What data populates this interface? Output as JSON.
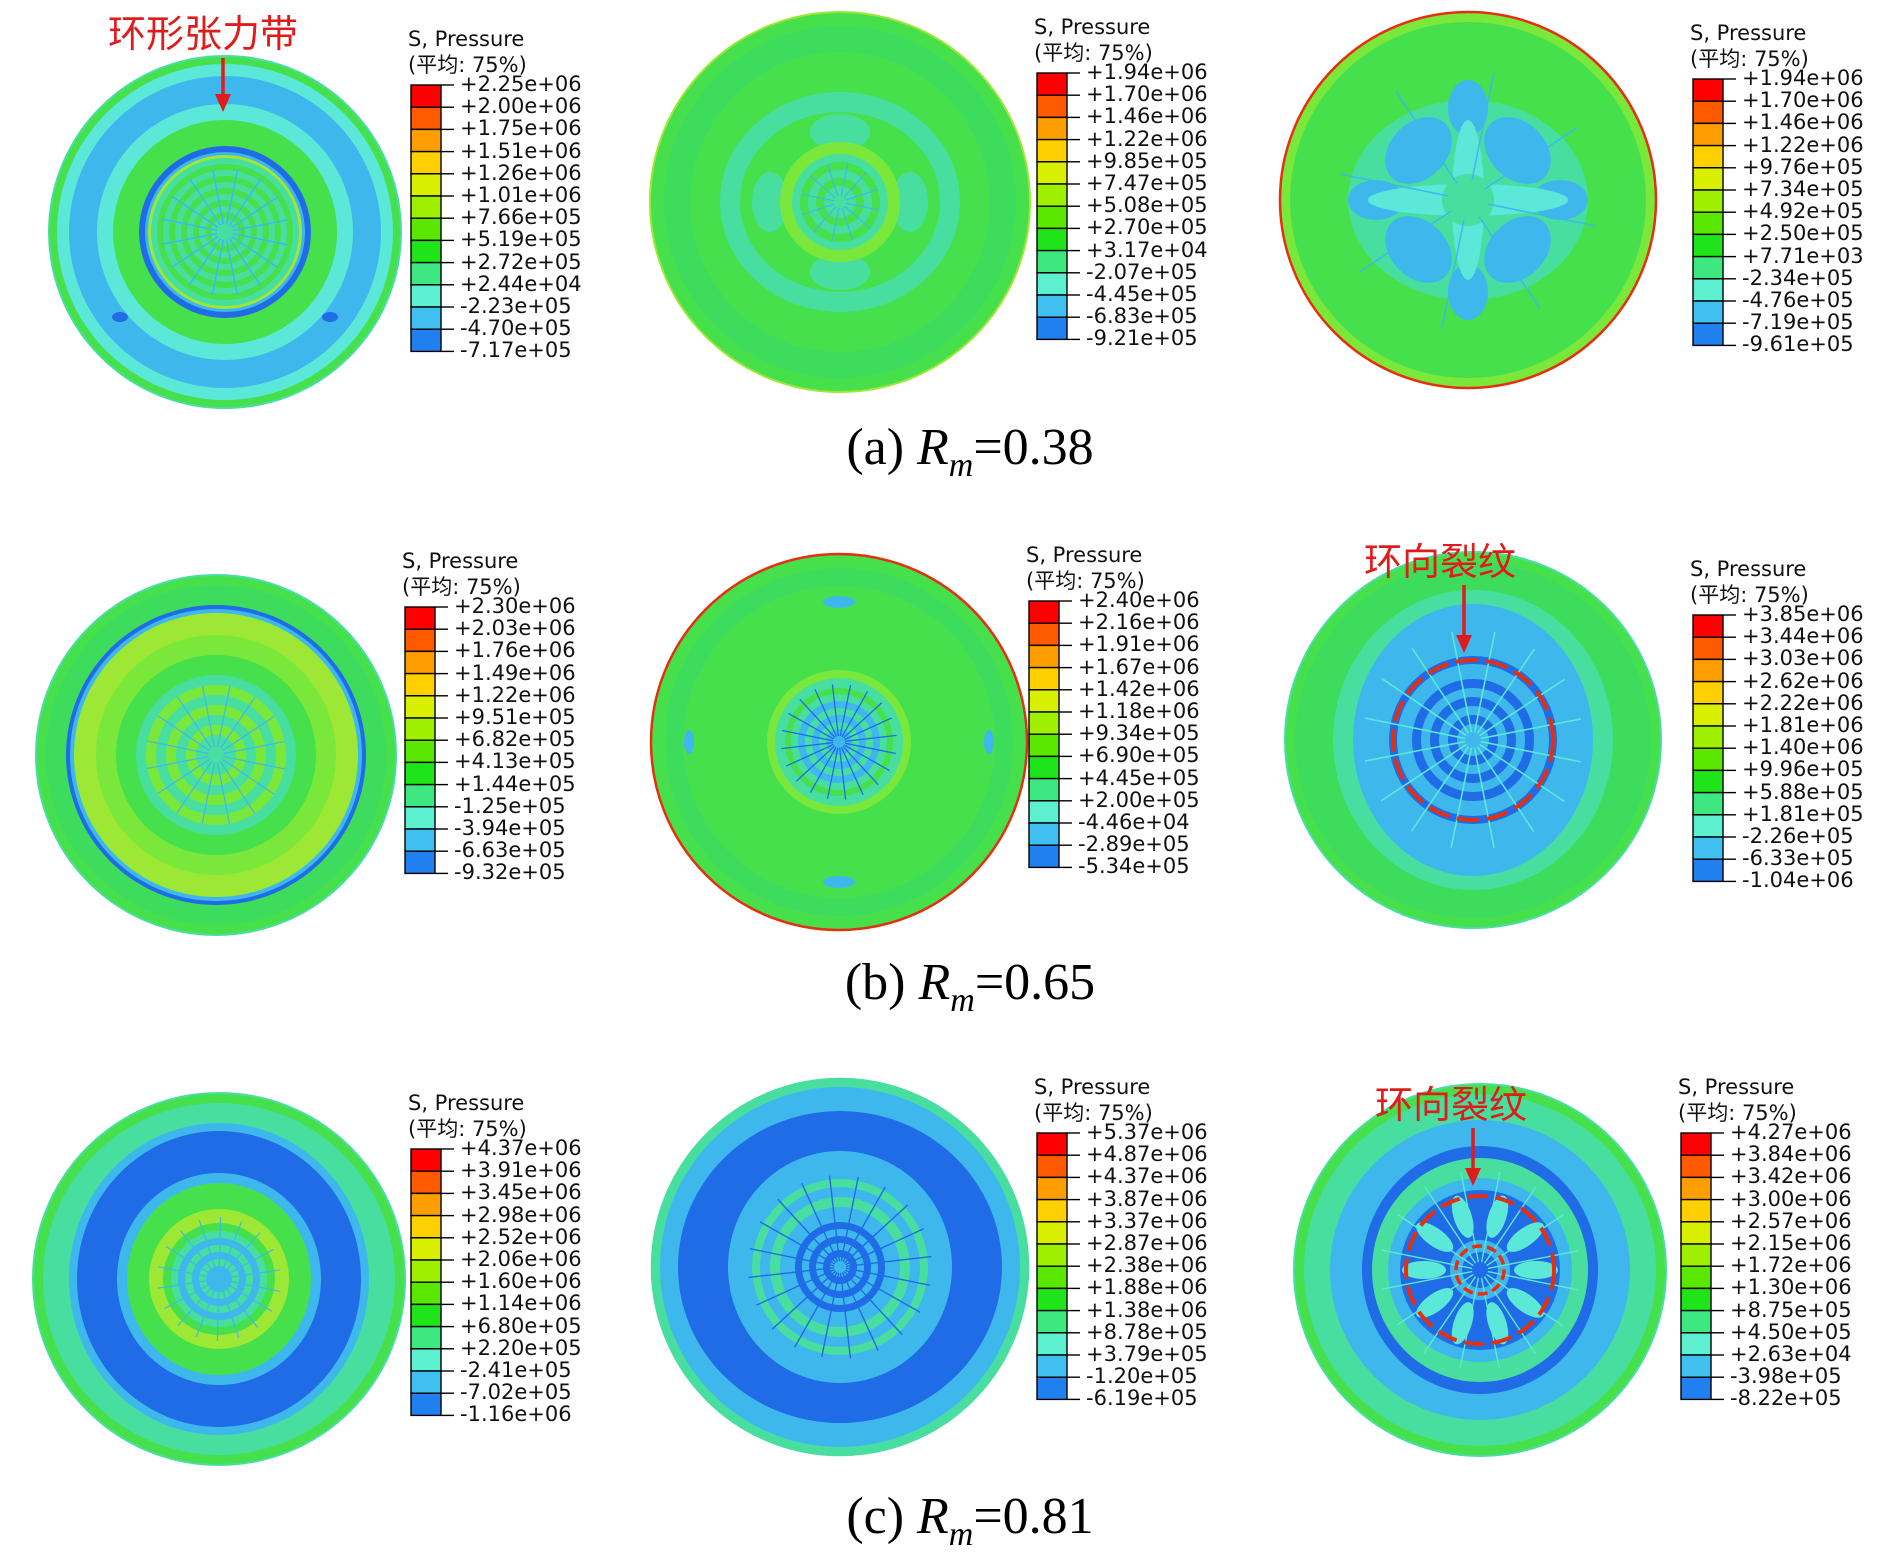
{
  "colors": {
    "annotation": "#e01b1b",
    "scale": [
      "#ff0000",
      "#ff5a00",
      "#ff9e00",
      "#ffd000",
      "#d8f000",
      "#9ef000",
      "#5ae800",
      "#20e41a",
      "#3ee880",
      "#5cf0d0",
      "#40c0f0",
      "#2080f0",
      "#1040f0"
    ]
  },
  "panels": [
    {
      "legend_title": "S, Pressure",
      "legend_subtitle": "(平均: 75%)",
      "values": [
        "+2.25e+06",
        "+2.00e+06",
        "+1.75e+06",
        "+1.51e+06",
        "+1.26e+06",
        "+1.01e+06",
        "+7.66e+05",
        "+5.19e+05",
        "+2.72e+05",
        "+2.44e+04",
        "-2.23e+05",
        "-4.70e+05",
        "-7.17e+05"
      ]
    },
    {
      "legend_title": "S, Pressure",
      "legend_subtitle": "(平均: 75%)",
      "values": [
        "+1.94e+06",
        "+1.70e+06",
        "+1.46e+06",
        "+1.22e+06",
        "+9.85e+05",
        "+7.47e+05",
        "+5.08e+05",
        "+2.70e+05",
        "+3.17e+04",
        "-2.07e+05",
        "-4.45e+05",
        "-6.83e+05",
        "-9.21e+05"
      ]
    },
    {
      "legend_title": "S, Pressure",
      "legend_subtitle": "(平均: 75%)",
      "values": [
        "+1.94e+06",
        "+1.70e+06",
        "+1.46e+06",
        "+1.22e+06",
        "+9.76e+05",
        "+7.34e+05",
        "+4.92e+05",
        "+2.50e+05",
        "+7.71e+03",
        "-2.34e+05",
        "-4.76e+05",
        "-7.19e+05",
        "-9.61e+05"
      ]
    },
    {
      "legend_title": "S, Pressure",
      "legend_subtitle": "(平均: 75%)",
      "values": [
        "+2.30e+06",
        "+2.03e+06",
        "+1.76e+06",
        "+1.49e+06",
        "+1.22e+06",
        "+9.51e+05",
        "+6.82e+05",
        "+4.13e+05",
        "+1.44e+05",
        "-1.25e+05",
        "-3.94e+05",
        "-6.63e+05",
        "-9.32e+05"
      ]
    },
    {
      "legend_title": "S, Pressure",
      "legend_subtitle": "(平均: 75%)",
      "values": [
        "+2.40e+06",
        "+2.16e+06",
        "+1.91e+06",
        "+1.67e+06",
        "+1.42e+06",
        "+1.18e+06",
        "+9.34e+05",
        "+6.90e+05",
        "+4.45e+05",
        "+2.00e+05",
        "-4.46e+04",
        "-2.89e+05",
        "-5.34e+05"
      ]
    },
    {
      "legend_title": "S, Pressure",
      "legend_subtitle": "(平均: 75%)",
      "values": [
        "+3.85e+06",
        "+3.44e+06",
        "+3.03e+06",
        "+2.62e+06",
        "+2.22e+06",
        "+1.81e+06",
        "+1.40e+06",
        "+9.96e+05",
        "+5.88e+05",
        "+1.81e+05",
        "-2.26e+05",
        "-6.33e+05",
        "-1.04e+06"
      ]
    },
    {
      "legend_title": "S, Pressure",
      "legend_subtitle": "(平均: 75%)",
      "values": [
        "+4.37e+06",
        "+3.91e+06",
        "+3.45e+06",
        "+2.98e+06",
        "+2.52e+06",
        "+2.06e+06",
        "+1.60e+06",
        "+1.14e+06",
        "+6.80e+05",
        "+2.20e+05",
        "-2.41e+05",
        "-7.02e+05",
        "-1.16e+06"
      ]
    },
    {
      "legend_title": "S, Pressure",
      "legend_subtitle": "(平均: 75%)",
      "values": [
        "+5.37e+06",
        "+4.87e+06",
        "+4.37e+06",
        "+3.87e+06",
        "+3.37e+06",
        "+2.87e+06",
        "+2.38e+06",
        "+1.88e+06",
        "+1.38e+06",
        "+8.78e+05",
        "+3.79e+05",
        "-1.20e+05",
        "-6.19e+05"
      ]
    },
    {
      "legend_title": "S, Pressure",
      "legend_subtitle": "(平均: 75%)",
      "values": [
        "+4.27e+06",
        "+3.84e+06",
        "+3.42e+06",
        "+3.00e+06",
        "+2.57e+06",
        "+2.15e+06",
        "+1.72e+06",
        "+1.30e+06",
        "+8.75e+05",
        "+4.50e+05",
        "+2.63e+04",
        "-3.98e+05",
        "-8.22e+05"
      ]
    }
  ],
  "captions": [
    {
      "label": "(a)",
      "variable": "R",
      "subscript": "m",
      "value": "=0.38"
    },
    {
      "label": "(b)",
      "variable": "R",
      "subscript": "m",
      "value": "=0.65"
    },
    {
      "label": "(c)",
      "variable": "R",
      "subscript": "m",
      "value": "=0.81"
    }
  ],
  "annotations": {
    "ring_tension_band": "环形张力带",
    "circumferential_crack_b": "环向裂纹",
    "circumferential_crack_c": "环向裂纹"
  }
}
